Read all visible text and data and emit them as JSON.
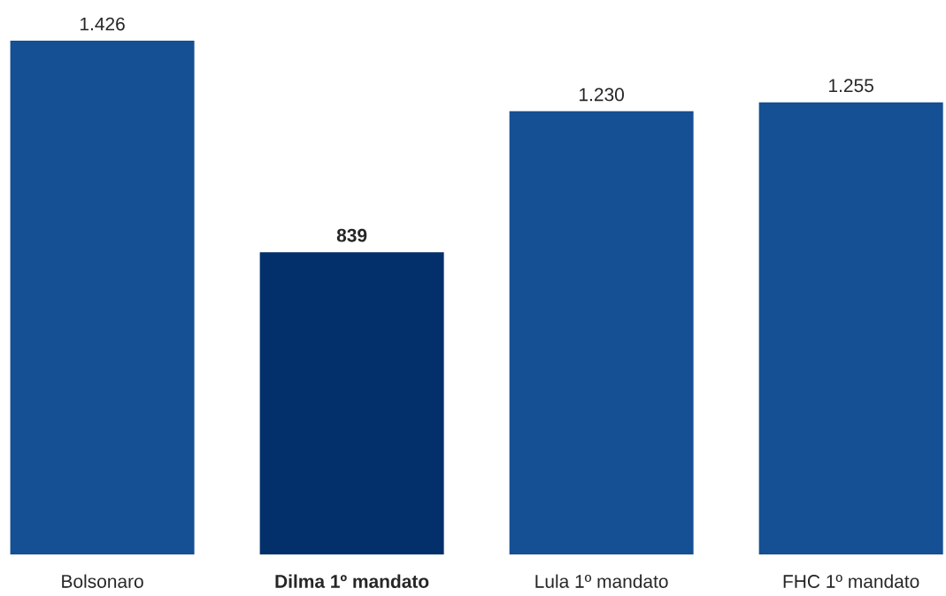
{
  "chart_data": {
    "type": "bar",
    "categories": [
      "Bolsonaro",
      "Dilma 1º mandato",
      "Lula 1º mandato",
      "FHC 1º mandato"
    ],
    "values": [
      1426,
      839,
      1230,
      1255
    ],
    "value_labels": [
      "1.426",
      "839",
      "1.230",
      "1.255"
    ],
    "colors": [
      "#154f94",
      "#03306b",
      "#154f94",
      "#154f94"
    ],
    "tick_labels": "x"
  }
}
